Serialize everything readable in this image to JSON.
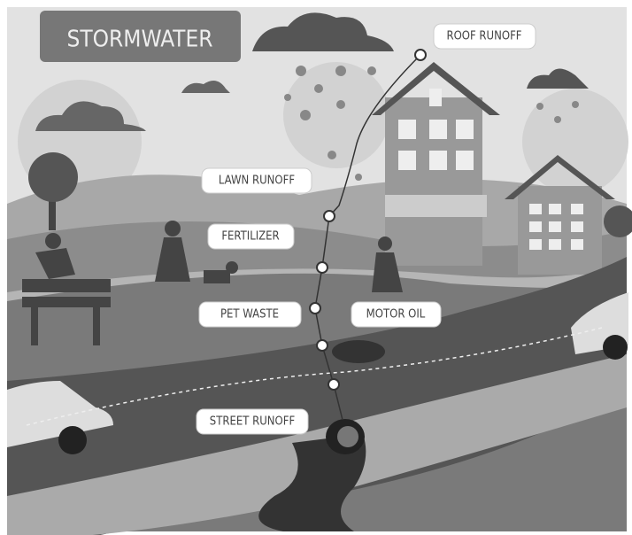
{
  "title": "STORMWATER",
  "labels": [
    "ROOF RUNOFF",
    "LAWN RUNOFF",
    "FERTILIZER",
    "PET WASTE",
    "MOTOR OIL",
    "STREET RUNOFF"
  ]
}
